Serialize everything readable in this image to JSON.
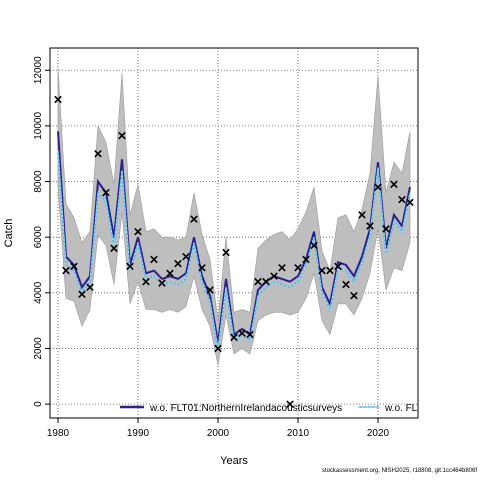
{
  "footer_text": "stockassessment.org, NISH2025, r18808, git:1cc464b806f",
  "chart_data": {
    "type": "line",
    "xlabel": "Years",
    "ylabel": "Catch",
    "xlim": [
      1979,
      2025
    ],
    "ylim": [
      -500,
      12800
    ],
    "x_ticks": [
      1980,
      1990,
      2000,
      2010,
      2020
    ],
    "y_ticks": [
      0,
      2000,
      4000,
      6000,
      8000,
      10000,
      12000
    ],
    "grid": true,
    "grid_style": "dotted",
    "legend_position": "bottom",
    "colors": {
      "band": "#bebebe",
      "band_edge": "#9a9a9a",
      "series_main": "#2b1f8f",
      "series_alt": "#3fb8e8",
      "observed": "#000000",
      "grid": "#555555"
    },
    "years": [
      1980,
      1981,
      1982,
      1983,
      1984,
      1985,
      1986,
      1987,
      1988,
      1989,
      1990,
      1991,
      1992,
      1993,
      1994,
      1995,
      1996,
      1997,
      1998,
      1999,
      2000,
      2001,
      2002,
      2003,
      2004,
      2005,
      2006,
      2007,
      2008,
      2009,
      2010,
      2011,
      2012,
      2013,
      2014,
      2015,
      2016,
      2017,
      2018,
      2019,
      2020,
      2021,
      2022,
      2023,
      2024
    ],
    "observed": [
      10950,
      4800,
      4950,
      3950,
      4200,
      9000,
      7600,
      5600,
      9650,
      4950,
      6200,
      4400,
      5200,
      4350,
      4700,
      5050,
      5300,
      6650,
      4900,
      4100,
      2000,
      5450,
      2400,
      2550,
      2500,
      4400,
      4400,
      4600,
      4900,
      0,
      4900,
      5200,
      5700,
      4800,
      4800,
      4950,
      4300,
      3900,
      6800,
      6400,
      7800,
      6300,
      7900,
      7350,
      7250
    ],
    "series": [
      {
        "name": "w.o. FLT01:NorthernIrelandacousticsurveys",
        "color": "#2b1f8f",
        "values": [
          9800,
          5300,
          5000,
          4200,
          4600,
          8000,
          7600,
          6000,
          8800,
          5000,
          6000,
          4700,
          4800,
          4500,
          4600,
          4500,
          4700,
          6000,
          4600,
          3900,
          2200,
          4500,
          2500,
          2700,
          2500,
          4100,
          4400,
          4600,
          4500,
          4400,
          4600,
          5200,
          6200,
          4200,
          3600,
          5100,
          5000,
          4600,
          5300,
          6300,
          8700,
          5600,
          6800,
          6400,
          7800
        ],
        "lower": [
          7800,
          3800,
          3700,
          2800,
          3400,
          6100,
          5700,
          4300,
          6900,
          3600,
          4400,
          3400,
          3400,
          3300,
          3400,
          3300,
          3500,
          4600,
          3400,
          2800,
          1400,
          3200,
          1800,
          2000,
          1800,
          3000,
          3200,
          3300,
          3300,
          3200,
          3300,
          3800,
          4700,
          3000,
          2500,
          3600,
          3600,
          3200,
          3800,
          4700,
          6300,
          4100,
          4900,
          4800,
          5800
        ],
        "upper": [
          12100,
          7200,
          6700,
          5800,
          6200,
          10000,
          9400,
          7900,
          11900,
          6800,
          7900,
          6200,
          6300,
          6000,
          6000,
          5900,
          6000,
          7600,
          6100,
          5200,
          3000,
          6000,
          3300,
          3400,
          3300,
          5600,
          5900,
          6100,
          6200,
          5900,
          6300,
          6900,
          7800,
          5500,
          4800,
          6700,
          6800,
          6200,
          7000,
          8300,
          11800,
          7600,
          8700,
          8300,
          9800
        ]
      },
      {
        "name": "w.o. FL",
        "color": "#3fb8e8",
        "values": [
          9100,
          5000,
          4800,
          4000,
          4400,
          7600,
          7300,
          5700,
          8400,
          4800,
          5800,
          4500,
          4600,
          4300,
          4400,
          4300,
          4500,
          5800,
          4400,
          3700,
          2000,
          4200,
          2300,
          2500,
          2300,
          3900,
          4200,
          4400,
          4300,
          4200,
          4400,
          5000,
          6000,
          4000,
          3400,
          4900,
          4800,
          4400,
          5100,
          6100,
          8500,
          5400,
          6600,
          6200,
          7600
        ]
      }
    ]
  }
}
